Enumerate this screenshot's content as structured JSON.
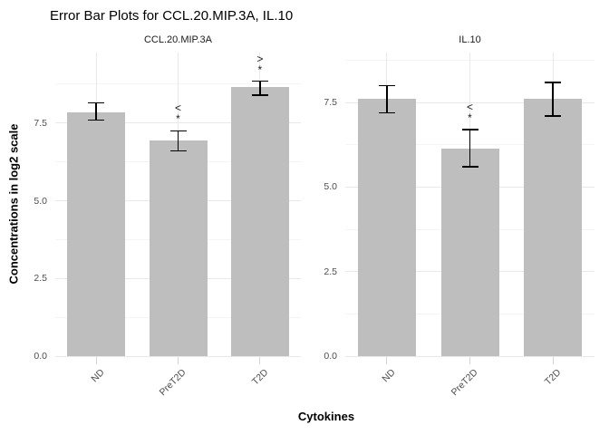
{
  "chart_data": {
    "type": "bar",
    "title": "Error Bar Plots for CCL.20.MIP.3A, IL.10",
    "xlabel": "Cytokines",
    "ylabel": "Concentrations in log2 scale",
    "categories": [
      "ND",
      "PreT2D",
      "T2D"
    ],
    "y_major_ticks": [
      0.0,
      2.5,
      5.0,
      7.5
    ],
    "y_tick_labels": [
      "0.0",
      "2.5",
      "5.0",
      "7.5"
    ],
    "y_minor_ticks": [
      1.25,
      3.75,
      6.25,
      8.75
    ],
    "grid": true,
    "legend": "none",
    "panels": [
      {
        "facet": "CCL.20.MIP.3A",
        "ylim": [
          0,
          9.77
        ],
        "bars": [
          {
            "category": "ND",
            "mean": 7.85,
            "lower": 7.6,
            "upper": 8.15,
            "annotation": null
          },
          {
            "category": "PreT2D",
            "mean": 6.95,
            "lower": 6.6,
            "upper": 7.25,
            "annotation": [
              "<",
              "*"
            ]
          },
          {
            "category": "T2D",
            "mean": 8.65,
            "lower": 8.4,
            "upper": 8.85,
            "annotation": [
              ">",
              "*"
            ]
          }
        ]
      },
      {
        "facet": "IL.10",
        "ylim": [
          0,
          8.98
        ],
        "bars": [
          {
            "category": "ND",
            "mean": 7.6,
            "lower": 7.2,
            "upper": 8.0,
            "annotation": null
          },
          {
            "category": "PreT2D",
            "mean": 6.15,
            "lower": 5.6,
            "upper": 6.7,
            "annotation": [
              "<",
              "*"
            ]
          },
          {
            "category": "T2D",
            "mean": 7.6,
            "lower": 7.1,
            "upper": 8.1,
            "annotation": null
          }
        ]
      }
    ],
    "colors": {
      "bar_fill": "#bebebe",
      "error_bar": "#000000",
      "grid_major": "#e9e9e9",
      "grid_minor": "#f4f4f4",
      "axis_tick": "#d4d4d4",
      "tick_label": "#4d4d4d",
      "strip_text": "#1a1a1a",
      "title": "#000000"
    }
  }
}
